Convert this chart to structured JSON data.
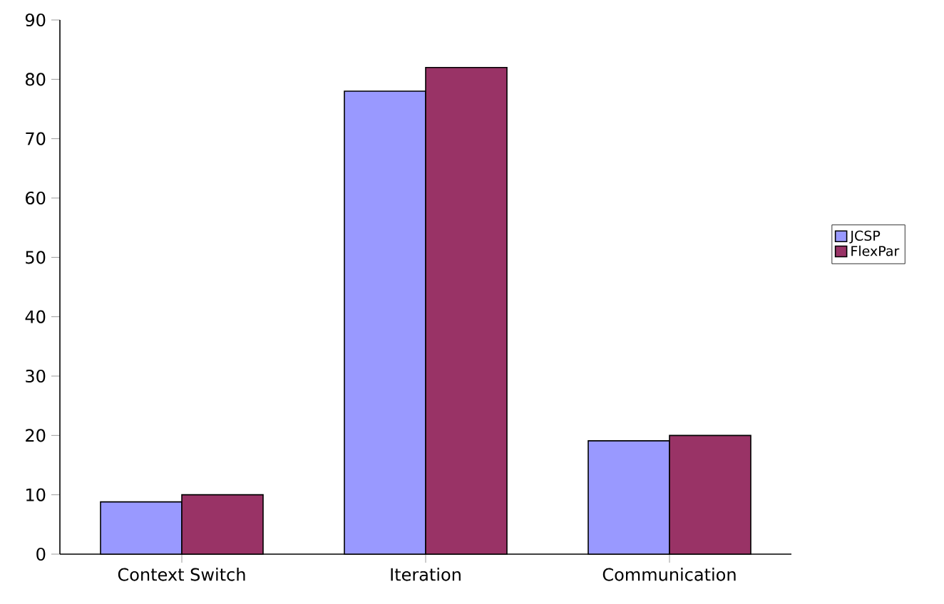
{
  "chart_data": {
    "type": "bar",
    "categories": [
      "Context Switch",
      "Iteration",
      "Communication"
    ],
    "series": [
      {
        "name": "JCSP",
        "color": "#9999ff",
        "values": [
          8.8,
          78,
          19.1
        ]
      },
      {
        "name": "FlexPar",
        "color": "#993366",
        "values": [
          10,
          82,
          20
        ]
      }
    ],
    "ylim": [
      0,
      90
    ],
    "yticks": [
      0,
      10,
      20,
      30,
      40,
      50,
      60,
      70,
      80,
      90
    ],
    "grid": false,
    "legend": "right"
  }
}
